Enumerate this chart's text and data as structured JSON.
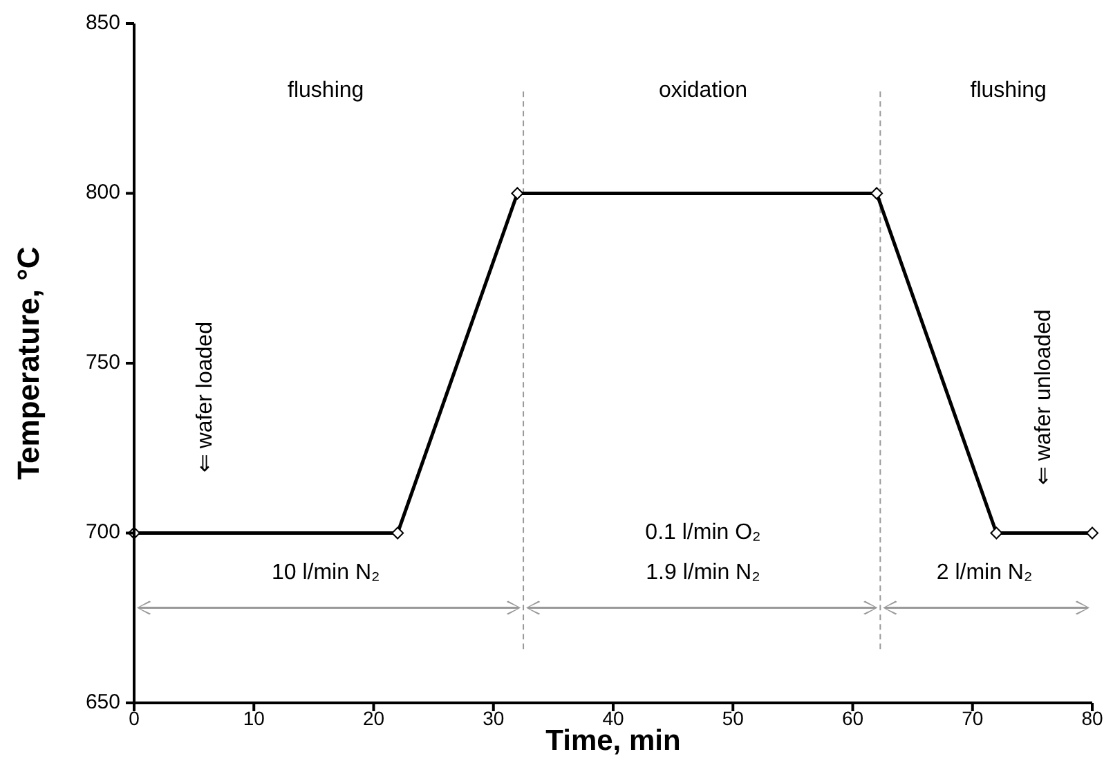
{
  "chart_data": {
    "type": "line",
    "xlabel": "Time, min",
    "ylabel": "Temperature, °C",
    "x": [
      0,
      22,
      32,
      62,
      72,
      80
    ],
    "series": [
      {
        "color": "#000000",
        "values": [
          700,
          700,
          800,
          800,
          700,
          700
        ]
      }
    ],
    "xlim": [
      0,
      80
    ],
    "xticks": [
      0,
      10,
      20,
      30,
      40,
      50,
      60,
      70,
      80
    ],
    "ylim": [
      650,
      850
    ],
    "yticks": [
      650,
      700,
      750,
      800,
      850
    ],
    "grid": false,
    "marker": "diamond",
    "line_style": "solid",
    "ref_lines": [
      {
        "axis": "x",
        "value": 32.5,
        "color": "#999999",
        "line_style": "dashed"
      },
      {
        "axis": "x",
        "value": 62.3,
        "color": "#999999",
        "line_style": "dashed"
      }
    ],
    "annotations": [
      "flushing",
      "oxidation",
      "flushing",
      "⇐ wafer loaded",
      "⇐ wafer unloaded",
      "10 l/min N₂",
      "0.1 l/min O₂",
      "1.9 l/min N₂",
      "2 l/min N₂"
    ]
  }
}
